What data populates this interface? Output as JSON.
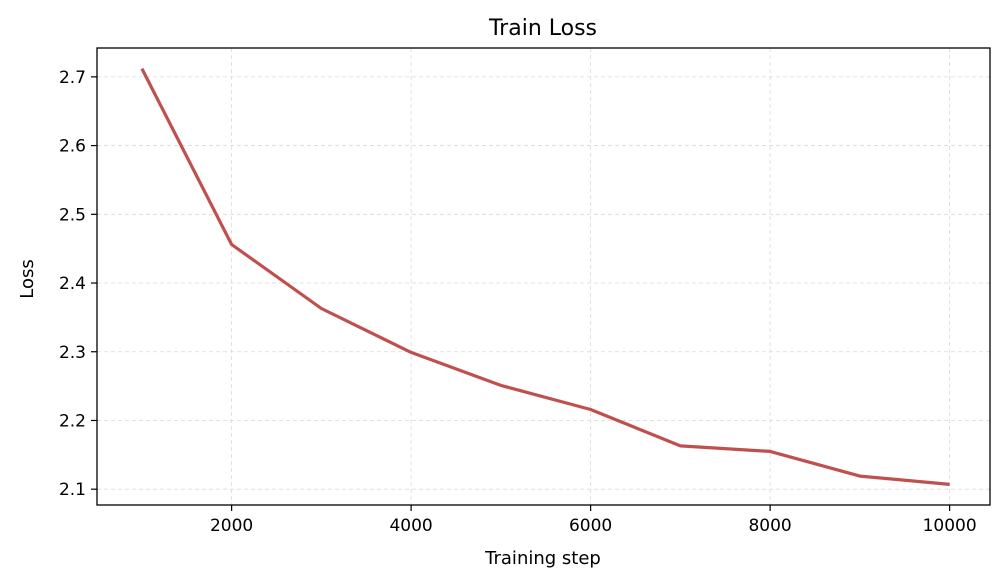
{
  "chart_data": {
    "type": "line",
    "title": "Train Loss",
    "xlabel": "Training step",
    "ylabel": "Loss",
    "xlim": [
      500,
      10450
    ],
    "ylim": [
      2.077,
      2.742
    ],
    "xticks": [
      2000,
      4000,
      6000,
      8000,
      10000
    ],
    "yticks": [
      2.1,
      2.2,
      2.3,
      2.4,
      2.5,
      2.6,
      2.7
    ],
    "grid": true,
    "legend": "none",
    "series": [
      {
        "color": "#c0504d",
        "x": [
          1000,
          2000,
          3000,
          4000,
          5000,
          6000,
          7000,
          8000,
          9000,
          10000
        ],
        "y": [
          2.712,
          2.456,
          2.363,
          2.299,
          2.251,
          2.216,
          2.163,
          2.155,
          2.119,
          2.107
        ]
      }
    ]
  }
}
